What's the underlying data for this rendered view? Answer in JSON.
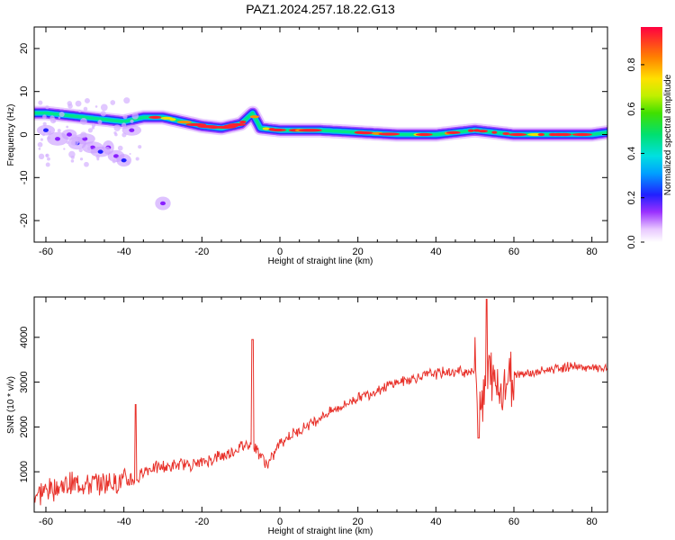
{
  "title": "PAZ1.2024.257.18.22.G13",
  "chart_data": [
    {
      "type": "heatmap",
      "xlabel": "Height of straight line (km)",
      "ylabel": "Frequency (Hz)",
      "xlim": [
        -63,
        84
      ],
      "ylim": [
        -25,
        25
      ],
      "xticks": [
        -60,
        -40,
        -20,
        0,
        20,
        40,
        60,
        80
      ],
      "yticks": [
        -20,
        -10,
        0,
        10,
        20
      ],
      "colorbar": {
        "label": "Normalized spectral amplitude",
        "ticks": [
          0.0,
          0.2,
          0.4,
          0.6,
          0.8
        ],
        "range": [
          0,
          0.97
        ]
      },
      "ridge": {
        "x": [
          -60,
          -55,
          -50,
          -45,
          -40,
          -35,
          -30,
          -25,
          -20,
          -15,
          -10,
          -7,
          -5,
          0,
          10,
          20,
          30,
          40,
          50,
          60,
          70,
          80,
          84
        ],
        "freq": [
          5,
          4.5,
          4,
          3.5,
          3,
          4,
          4,
          3,
          2,
          1.5,
          2.5,
          5,
          1.5,
          1,
          1,
          0.5,
          0,
          0,
          1,
          0,
          0,
          0,
          0.5
        ]
      },
      "scatter_blobs": {
        "x": [
          -60,
          -57,
          -54,
          -52,
          -50,
          -48,
          -46,
          -44,
          -42,
          -40,
          -38,
          -30
        ],
        "freq": [
          1,
          -1,
          0,
          -2,
          -1,
          -3,
          -4,
          -3,
          -5,
          -6,
          1,
          -16
        ]
      }
    },
    {
      "type": "line",
      "xlabel": "Height of straight line (km)",
      "ylabel": "SNR (10 * v/v)",
      "xlim": [
        -63,
        84
      ],
      "ylim": [
        100,
        4900
      ],
      "xticks": [
        -60,
        -40,
        -20,
        0,
        20,
        40,
        60,
        80
      ],
      "yticks": [
        1000,
        2000,
        3000,
        4000
      ],
      "color": "#e8312a",
      "trend": {
        "x": [
          -63,
          -55,
          -45,
          -40,
          -36,
          -35,
          -30,
          -20,
          -12,
          -8,
          -6,
          -3,
          0,
          10,
          20,
          30,
          40,
          50,
          52,
          54,
          56,
          58,
          60,
          65,
          70,
          75,
          80,
          84
        ],
        "y": [
          500,
          700,
          750,
          800,
          850,
          1050,
          1100,
          1200,
          1450,
          1650,
          1500,
          1150,
          1650,
          2200,
          2650,
          3000,
          3200,
          3250,
          2600,
          3200,
          2800,
          3000,
          3200,
          3200,
          3300,
          3350,
          3300,
          3300
        ]
      },
      "spikes": [
        {
          "x": -37,
          "y": 2500
        },
        {
          "x": -7,
          "y": 3950
        },
        {
          "x": 53,
          "y": 4850
        },
        {
          "x": 51,
          "y": 1750
        }
      ]
    }
  ]
}
